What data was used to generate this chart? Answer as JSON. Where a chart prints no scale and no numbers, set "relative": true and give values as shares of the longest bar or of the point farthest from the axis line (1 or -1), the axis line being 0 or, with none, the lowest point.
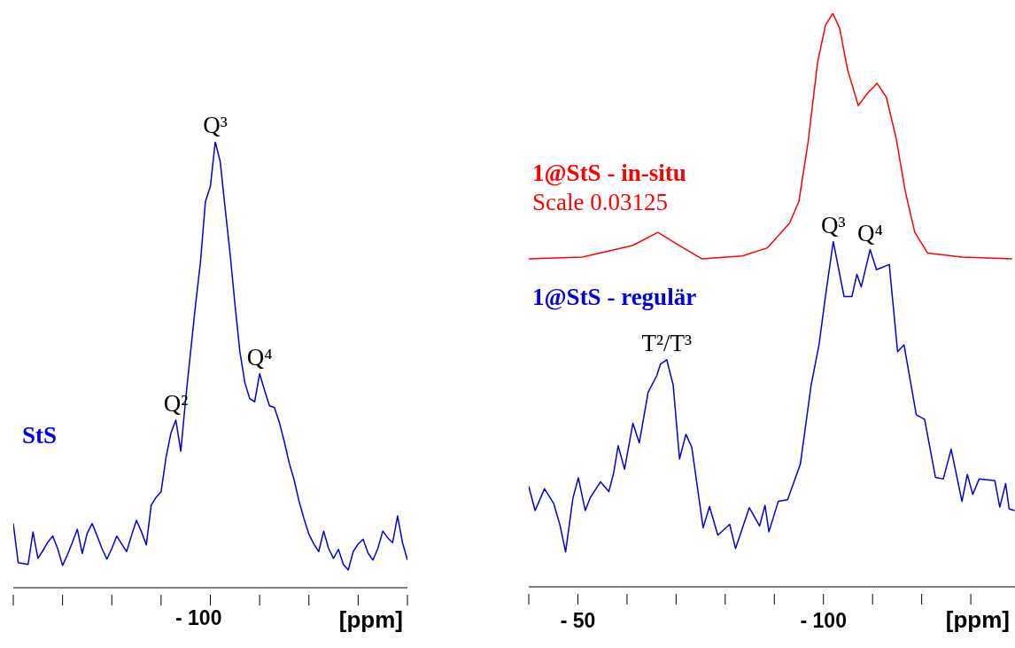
{
  "chart_data": [
    {
      "type": "line",
      "relative": true,
      "marker": "none",
      "xlabel": "[ppm]",
      "categories": [
        null,
        null,
        null,
        null,
        null,
        null,
        null,
        null,
        null,
        null,
        null,
        null,
        null,
        null,
        null,
        null,
        null,
        null,
        null,
        null,
        null,
        null,
        null,
        null,
        null,
        null,
        null,
        null,
        null,
        null,
        null,
        null,
        null,
        null,
        null,
        null,
        null,
        null,
        null,
        null,
        null,
        null,
        null,
        null,
        null,
        null,
        null,
        null,
        null,
        null,
        null,
        null,
        null,
        null,
        null,
        null,
        null,
        null,
        null,
        null,
        null,
        null,
        null,
        null,
        null,
        null,
        null,
        null,
        null,
        null,
        null,
        null,
        null,
        null,
        null,
        null,
        null,
        null,
        null,
        null,
        null
      ],
      "series": [
        {
          "name": "StS",
          "color": "#0000dd",
          "values": [
            0.144,
            0.056,
            0.054,
            0.052,
            0.125,
            0.066,
            0.083,
            0.102,
            0.116,
            0.088,
            0.05,
            0.074,
            0.102,
            0.131,
            0.077,
            0.122,
            0.144,
            0.117,
            0.088,
            0.064,
            0.088,
            0.116,
            0.098,
            0.081,
            0.117,
            0.151,
            0.126,
            0.096,
            0.185,
            0.203,
            0.215,
            0.292,
            0.347,
            0.376,
            0.306,
            0.424,
            0.53,
            0.635,
            0.731,
            0.866,
            0.9,
            1.0,
            0.956,
            0.851,
            0.75,
            0.635,
            0.529,
            0.46,
            0.424,
            0.417,
            0.48,
            0.443,
            0.408,
            0.404,
            0.371,
            0.328,
            0.28,
            0.242,
            0.194,
            0.155,
            0.12,
            0.098,
            0.081,
            0.127,
            0.088,
            0.066,
            0.086,
            0.052,
            0.04,
            0.081,
            0.098,
            0.109,
            0.078,
            0.062,
            0.088,
            0.127,
            0.112,
            0.101,
            0.161,
            0.101,
            0.062
          ]
        }
      ],
      "annotations": [
        "- 100",
        {
          "text": "Q²",
          "y": 0.376
        },
        {
          "text": "Q³",
          "y": 1.0
        },
        {
          "text": "Q⁴",
          "y": 0.48
        }
      ]
    },
    {
      "type": "line",
      "relative": true,
      "marker": "none",
      "xlabel": "[ppm]",
      "xlim": [
        -40,
        -139
      ],
      "xticks": [
        {
          "value": -40,
          "label": null
        },
        {
          "value": -50,
          "label": "- 50"
        },
        {
          "value": -60,
          "label": null
        },
        {
          "value": -70,
          "label": null
        },
        {
          "value": -80,
          "label": null
        },
        {
          "value": -90,
          "label": null
        },
        {
          "value": -100,
          "label": "- 100"
        },
        {
          "value": -110,
          "label": null
        },
        {
          "value": -120,
          "label": null
        },
        {
          "value": -130,
          "label": null
        }
      ],
      "series": [
        {
          "name": "1@StS - in-situ",
          "color": "#ff0000",
          "x": [
            -40,
            -50.9,
            -61.1,
            -66.3,
            -70.1,
            -75.2,
            -83.5,
            -88.6,
            -93.1,
            -95.0,
            -96.9,
            -98.8,
            -100.4,
            -101.9,
            -103.3,
            -104.9,
            -107.1,
            -109.0,
            -110.9,
            -112.8,
            -114.8,
            -116.7,
            -118.6,
            -121.2,
            -128.2,
            -138.4
          ],
          "values": [
            0.572,
            0.575,
            0.595,
            0.618,
            0.598,
            0.572,
            0.577,
            0.591,
            0.634,
            0.672,
            0.777,
            0.914,
            0.979,
            1.0,
            0.974,
            0.902,
            0.839,
            0.861,
            0.878,
            0.854,
            0.782,
            0.688,
            0.618,
            0.582,
            0.575,
            0.572
          ]
        },
        {
          "name": "1@StS - regulär",
          "color": "#0000dd",
          "x": [
            -40,
            -41.3,
            -43.2,
            -45.1,
            -46.4,
            -47.5,
            -49.0,
            -50.1,
            -51.5,
            -52.5,
            -54.6,
            -56.3,
            -57.3,
            -58.2,
            -59.5,
            -61.2,
            -62.5,
            -64.3,
            -66.1,
            -66.8,
            -68.1,
            -69.4,
            -70.7,
            -72.0,
            -73.2,
            -75.5,
            -76.8,
            -78.5,
            -80.9,
            -82.1,
            -84.9,
            -87.0,
            -88.1,
            -88.9,
            -90.8,
            -92.7,
            -95.3,
            -97.5,
            -99.1,
            -100.4,
            -102.0,
            -104.2,
            -105.8,
            -106.8,
            -107.7,
            -109.5,
            -110.8,
            -113.4,
            -115.1,
            -116.4,
            -118.9,
            -120.6,
            -122.8,
            -124.4,
            -126.0,
            -128.2,
            -129.3,
            -130.4,
            -131.7,
            -134.9,
            -135.9,
            -137.1,
            -137.8,
            -138.9
          ],
          "values": [
            0.175,
            0.133,
            0.171,
            0.145,
            0.106,
            0.061,
            0.155,
            0.19,
            0.133,
            0.155,
            0.183,
            0.166,
            0.199,
            0.246,
            0.205,
            0.285,
            0.251,
            0.339,
            0.369,
            0.388,
            0.396,
            0.352,
            0.223,
            0.266,
            0.243,
            0.103,
            0.14,
            0.09,
            0.109,
            0.067,
            0.138,
            0.106,
            0.142,
            0.096,
            0.149,
            0.152,
            0.214,
            0.352,
            0.422,
            0.506,
            0.602,
            0.506,
            0.506,
            0.545,
            0.523,
            0.588,
            0.553,
            0.562,
            0.41,
            0.422,
            0.3,
            0.292,
            0.191,
            0.188,
            0.24,
            0.149,
            0.196,
            0.161,
            0.188,
            0.185,
            0.139,
            0.18,
            0.136,
            0.133
          ]
        }
      ],
      "annotations": [
        "Scale 0.03125",
        {
          "text": "T²/T³",
          "x": -68.1,
          "y": 0.396
        },
        {
          "text": "Q³",
          "x": -102.0,
          "y": 0.602
        },
        {
          "text": "Q⁴",
          "x": -109.5,
          "y": 0.588
        }
      ]
    }
  ]
}
